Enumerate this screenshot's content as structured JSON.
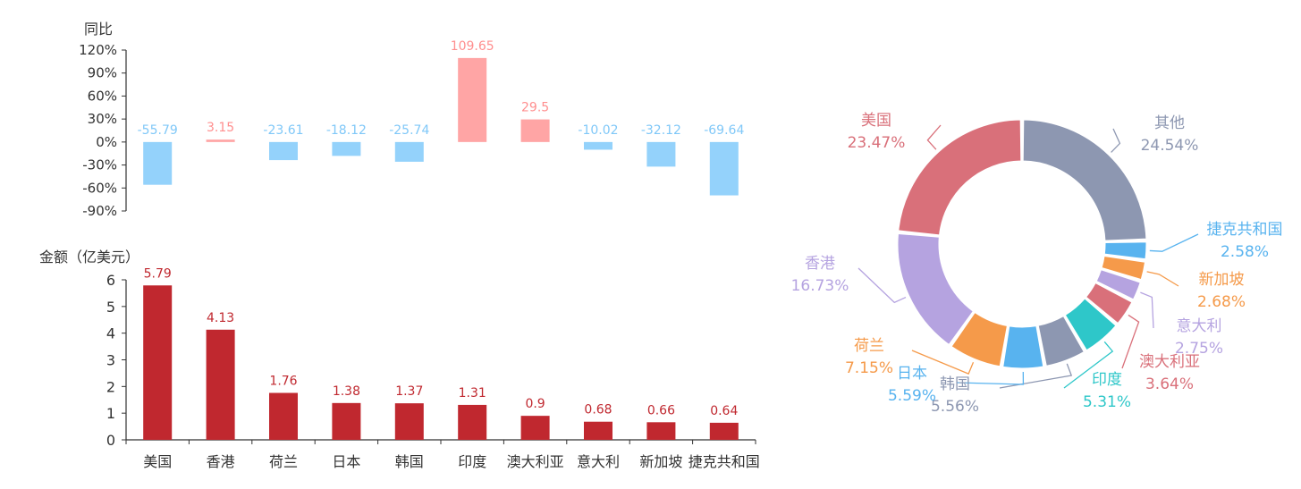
{
  "chart_data": [
    {
      "type": "bar",
      "ylabel": "同比",
      "ylim": [
        -90,
        120
      ],
      "yticks": [
        "120%",
        "90%",
        "60%",
        "30%",
        "0%",
        "-30%",
        "-60%",
        "-90%"
      ],
      "categories": [
        "美国",
        "香港",
        "荷兰",
        "日本",
        "韩国",
        "印度",
        "澳大利亚",
        "意大利",
        "新加坡",
        "捷克共和国"
      ],
      "values": [
        -55.79,
        3.15,
        -23.61,
        -18.12,
        -25.74,
        109.65,
        29.5,
        -10.02,
        -32.12,
        -69.64
      ],
      "labels": [
        "-55.79",
        "3.15",
        "-23.61",
        "-18.12",
        "-25.74",
        "109.65",
        "29.5",
        "-10.02",
        "-32.12",
        "-69.64"
      ],
      "colors": {
        "positive": "#ffa5a5",
        "negative": "#94d2fb",
        "positive_label": "#ff8f8f",
        "negative_label": "#80c8f8"
      }
    },
    {
      "type": "bar",
      "ylabel": "金额（亿美元）",
      "ylim": [
        0,
        6
      ],
      "yticks": [
        "6",
        "5",
        "4",
        "3",
        "2",
        "1",
        "0"
      ],
      "categories": [
        "美国",
        "香港",
        "荷兰",
        "日本",
        "韩国",
        "印度",
        "澳大利亚",
        "意大利",
        "新加坡",
        "捷克共和国"
      ],
      "values": [
        5.79,
        4.13,
        1.76,
        1.38,
        1.37,
        1.31,
        0.9,
        0.68,
        0.66,
        0.64
      ],
      "labels": [
        "5.79",
        "4.13",
        "1.76",
        "1.38",
        "1.37",
        "1.31",
        "0.9",
        "0.68",
        "0.66",
        "0.64"
      ],
      "colors": {
        "bar": "#c0282f",
        "label": "#c0282f"
      }
    },
    {
      "type": "pie",
      "donut": true,
      "slices": [
        {
          "name": "其他",
          "pct": "24.54%",
          "value": 24.54,
          "color": "#8d97b1"
        },
        {
          "name": "捷克共和国",
          "pct": "2.58%",
          "value": 2.58,
          "color": "#58b3ef"
        },
        {
          "name": "新加坡",
          "pct": "2.68%",
          "value": 2.68,
          "color": "#f59a4a"
        },
        {
          "name": "意大利",
          "pct": "2.75%",
          "value": 2.75,
          "color": "#b5a3e0"
        },
        {
          "name": "澳大利亚",
          "pct": "3.64%",
          "value": 3.64,
          "color": "#d9707a"
        },
        {
          "name": "印度",
          "pct": "5.31%",
          "value": 5.31,
          "color": "#2ec7c9"
        },
        {
          "name": "韩国",
          "pct": "5.56%",
          "value": 5.56,
          "color": "#8d97b1"
        },
        {
          "name": "日本",
          "pct": "5.59%",
          "value": 5.59,
          "color": "#58b3ef"
        },
        {
          "name": "荷兰",
          "pct": "7.15%",
          "value": 7.15,
          "color": "#f59a4a"
        },
        {
          "name": "香港",
          "pct": "16.73%",
          "value": 16.73,
          "color": "#b5a3e0"
        },
        {
          "name": "美国",
          "pct": "23.47%",
          "value": 23.47,
          "color": "#d9707a"
        }
      ]
    }
  ]
}
